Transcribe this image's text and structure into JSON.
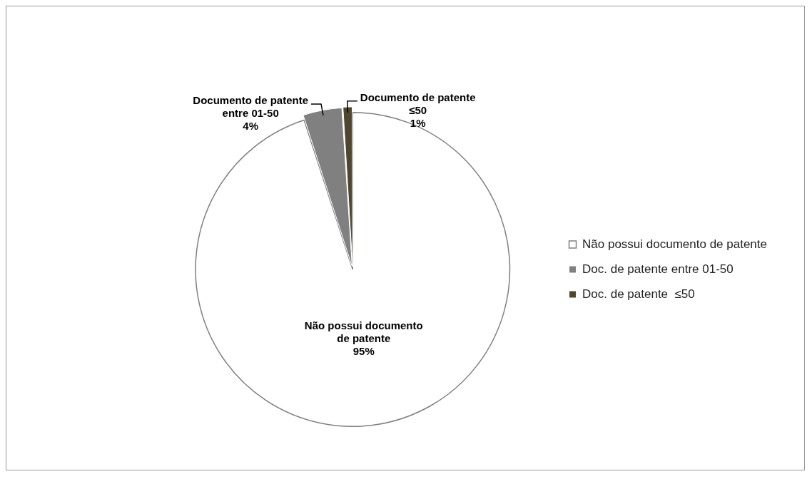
{
  "chart_data": {
    "type": "pie",
    "categories": [
      "Não possui documento de patente",
      "Doc. de patente entre 01-50",
      "Doc. de patente  ≤50"
    ],
    "values": [
      95,
      4,
      1
    ],
    "colors": [
      "#ffffff",
      "#808080",
      "#4f4630"
    ],
    "value_labels": [
      "Não possui documento de patente\n95%",
      "Documento de patente entre 01-50\n4%",
      "Documento de patente\n≤50\n1%"
    ],
    "legend": "right"
  }
}
